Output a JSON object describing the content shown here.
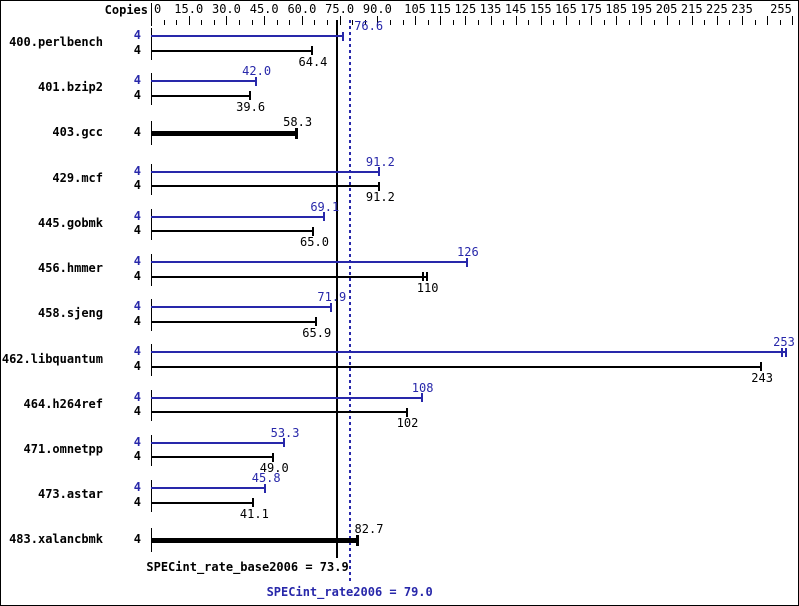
{
  "header": {
    "copies_label": "Copies"
  },
  "axis": {
    "min": 0,
    "max": 255,
    "minor_tick_step": 5,
    "major_ticks": [
      15,
      30,
      45,
      60,
      75,
      90,
      105,
      115,
      125,
      135,
      145,
      155,
      165,
      175,
      185,
      195,
      205,
      215,
      225,
      235,
      245,
      255
    ],
    "labels": [
      {
        "value": 0,
        "text": "0"
      },
      {
        "value": 15,
        "text": "15.0"
      },
      {
        "value": 30,
        "text": "30.0"
      },
      {
        "value": 45,
        "text": "45.0"
      },
      {
        "value": 60,
        "text": "60.0"
      },
      {
        "value": 75,
        "text": "75.0"
      },
      {
        "value": 90,
        "text": "90.0"
      },
      {
        "value": 105,
        "text": "105"
      },
      {
        "value": 115,
        "text": "115"
      },
      {
        "value": 125,
        "text": "125"
      },
      {
        "value": 135,
        "text": "135"
      },
      {
        "value": 145,
        "text": "145"
      },
      {
        "value": 155,
        "text": "155"
      },
      {
        "value": 165,
        "text": "165"
      },
      {
        "value": 175,
        "text": "175"
      },
      {
        "value": 185,
        "text": "185"
      },
      {
        "value": 195,
        "text": "195"
      },
      {
        "value": 205,
        "text": "205"
      },
      {
        "value": 215,
        "text": "215"
      },
      {
        "value": 225,
        "text": "225"
      },
      {
        "value": 235,
        "text": "235"
      },
      {
        "value": 255,
        "text": "255"
      }
    ]
  },
  "chart_data": {
    "type": "bar",
    "orientation": "horizontal",
    "title": "",
    "xlabel": "",
    "ylabel": "Copies",
    "xlim": [
      0,
      255
    ],
    "grid": false,
    "series_meaning": {
      "peak": "SPECint_rate2006 (blue)",
      "base": "SPECint_rate_base2006 (black)",
      "combined": "base and peak identical (thick black)"
    },
    "benchmarks": [
      {
        "name": "400.perlbench",
        "copies": 4,
        "peak": 76.6,
        "peak_label": "76.6",
        "base": 64.4,
        "base_label": "64.4",
        "peak_label_dx": 25
      },
      {
        "name": "401.bzip2",
        "copies": 4,
        "peak": 42.0,
        "peak_label": "42.0",
        "base": 39.6,
        "base_label": "39.6"
      },
      {
        "name": "403.gcc",
        "copies": 4,
        "combined": 58.3,
        "combined_label": "58.3"
      },
      {
        "name": "429.mcf",
        "copies": 4,
        "peak": 91.2,
        "peak_label": "91.2",
        "base": 91.2,
        "base_label": "91.2"
      },
      {
        "name": "445.gobmk",
        "copies": 4,
        "peak": 69.1,
        "peak_label": "69.1",
        "base": 65.0,
        "base_label": "65.0"
      },
      {
        "name": "456.hmmer",
        "copies": 4,
        "peak": 126,
        "peak_label": "126",
        "base": 110,
        "base_label": "110",
        "base_double_cap": true
      },
      {
        "name": "458.sjeng",
        "copies": 4,
        "peak": 71.9,
        "peak_label": "71.9",
        "base": 65.9,
        "base_label": "65.9"
      },
      {
        "name": "462.libquantum",
        "copies": 4,
        "peak": 253,
        "peak_label": "253",
        "base": 243,
        "base_label": "243",
        "peak_double_cap": true
      },
      {
        "name": "464.h264ref",
        "copies": 4,
        "peak": 108,
        "peak_label": "108",
        "base": 102,
        "base_label": "102"
      },
      {
        "name": "471.omnetpp",
        "copies": 4,
        "peak": 53.3,
        "peak_label": "53.3",
        "base": 49.0,
        "base_label": "49.0"
      },
      {
        "name": "473.astar",
        "copies": 4,
        "peak": 45.8,
        "peak_label": "45.8",
        "base": 41.1,
        "base_label": "41.1"
      },
      {
        "name": "483.xalancbmk",
        "copies": 4,
        "combined": 82.7,
        "combined_label": "82.7",
        "combined_label_dx": 10
      }
    ]
  },
  "reference_lines": {
    "base": {
      "value": 73.9,
      "label": "SPECint_rate_base2006 = 73.9"
    },
    "peak": {
      "value": 79.0,
      "label": "SPECint_rate2006 = 79.0"
    }
  },
  "colors": {
    "peak_accent": "#2828aa",
    "base_accent": "#000000",
    "background": "#ffffff"
  }
}
